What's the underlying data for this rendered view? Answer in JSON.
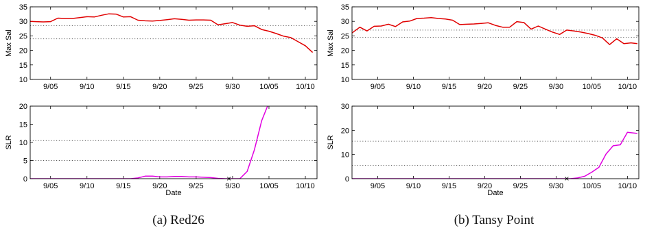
{
  "figure": {
    "captions": [
      "(a) Red26",
      "(b) Tansy Point"
    ]
  },
  "chart_data": [
    {
      "type": "line",
      "panel": "a-top",
      "ylabel": "Max Sal",
      "ylim": [
        10,
        35
      ],
      "yticks": [
        10,
        15,
        20,
        25,
        30,
        35
      ],
      "xlim": [
        2.2,
        41.6
      ],
      "xticks": [
        5,
        10,
        15,
        20,
        25,
        30,
        35,
        40
      ],
      "xticklabels": [
        "9/05",
        "9/10",
        "9/15",
        "9/20",
        "9/25",
        "9/30",
        "10/05",
        "10/10"
      ],
      "grid_y": [
        24,
        28.5
      ],
      "series": [
        {
          "color": "#e00000",
          "x": [
            2.2,
            3,
            4,
            5,
            6,
            7,
            8,
            9,
            10,
            11,
            12,
            13,
            14,
            15,
            16,
            17,
            18,
            19,
            20,
            21,
            22,
            23,
            24,
            25,
            26,
            27,
            28,
            29,
            30,
            31,
            32,
            33,
            34,
            35,
            36,
            37,
            38,
            39,
            40,
            41
          ],
          "y": [
            30.0,
            29.9,
            29.8,
            29.9,
            31.1,
            31.0,
            31.0,
            31.3,
            31.6,
            31.5,
            32.1,
            32.6,
            32.5,
            31.5,
            31.6,
            30.4,
            30.2,
            30.1,
            30.3,
            30.6,
            30.9,
            30.7,
            30.4,
            30.5,
            30.5,
            30.4,
            28.8,
            29.2,
            29.6,
            28.7,
            28.3,
            28.5,
            27.2,
            26.6,
            25.8,
            24.9,
            24.4,
            23.0,
            21.6,
            19.3
          ]
        }
      ]
    },
    {
      "type": "line",
      "panel": "a-bottom",
      "ylabel": "SLR",
      "xlabel": "Date",
      "ylim": [
        0,
        20
      ],
      "yticks": [
        0,
        5,
        10,
        15,
        20
      ],
      "xlim": [
        2.2,
        41.6
      ],
      "xticks": [
        5,
        10,
        15,
        20,
        25,
        30,
        35,
        40
      ],
      "xticklabels": [
        "9/05",
        "9/10",
        "9/15",
        "9/20",
        "9/25",
        "9/30",
        "10/05",
        "10/10"
      ],
      "grid_y": [
        5,
        10.5
      ],
      "marker": {
        "x": 29.5,
        "y": 0,
        "symbol": "×"
      },
      "series": [
        {
          "color": "#e000e0",
          "x": [
            2.2,
            5,
            10,
            15,
            16,
            17,
            18,
            19,
            20,
            21,
            22,
            23,
            24,
            25,
            26,
            27,
            28,
            29,
            30,
            31,
            32,
            33,
            34,
            34.8
          ],
          "y": [
            0,
            0,
            0,
            0,
            0,
            0.2,
            0.7,
            0.7,
            0.5,
            0.5,
            0.6,
            0.6,
            0.5,
            0.5,
            0.4,
            0.3,
            0.1,
            0,
            0,
            0,
            2,
            8,
            16,
            20
          ]
        }
      ]
    },
    {
      "type": "line",
      "panel": "b-top",
      "ylabel": "Max Sal",
      "ylim": [
        10,
        35
      ],
      "yticks": [
        10,
        15,
        20,
        25,
        30,
        35
      ],
      "xlim": [
        1.4,
        41.6
      ],
      "xticks": [
        5,
        10,
        15,
        20,
        25,
        30,
        35,
        40
      ],
      "xticklabels": [
        "9/05",
        "9/10",
        "9/15",
        "9/20",
        "9/25",
        "9/30",
        "10/05",
        "10/10"
      ],
      "grid_y": [
        24.5,
        27
      ],
      "series": [
        {
          "color": "#e00000",
          "x": [
            1.4,
            2.5,
            3.5,
            4.5,
            5.5,
            6.5,
            7.5,
            8.5,
            9.5,
            10.5,
            11.5,
            12.5,
            13.5,
            14.5,
            15.5,
            16.5,
            17.5,
            18.5,
            19.5,
            20.5,
            21.5,
            22.5,
            23.5,
            24.5,
            25.5,
            26.5,
            27.5,
            28.5,
            29.5,
            30.5,
            31.5,
            32.5,
            33.5,
            34.5,
            35.5,
            36.5,
            37.5,
            38.5,
            39.5,
            40.5,
            41.4
          ],
          "y": [
            26.0,
            28.0,
            26.7,
            28.3,
            28.4,
            29.0,
            28.2,
            29.8,
            30.1,
            31.0,
            31.1,
            31.3,
            31.0,
            30.8,
            30.4,
            28.9,
            29.0,
            29.1,
            29.3,
            29.5,
            28.6,
            28.0,
            28.0,
            29.9,
            29.6,
            27.3,
            28.4,
            27.3,
            26.3,
            25.5,
            27.0,
            26.7,
            26.3,
            25.8,
            25.2,
            24.3,
            22.0,
            24.0,
            22.3,
            22.6,
            22.3
          ]
        }
      ]
    },
    {
      "type": "line",
      "panel": "b-bottom",
      "ylabel": "SLR",
      "xlabel": "Date",
      "ylim": [
        0,
        30
      ],
      "yticks": [
        0,
        10,
        20,
        30
      ],
      "xlim": [
        1.4,
        41.6
      ],
      "xticks": [
        5,
        10,
        15,
        20,
        25,
        30,
        35,
        40
      ],
      "xticklabels": [
        "9/05",
        "9/10",
        "9/15",
        "9/20",
        "9/25",
        "9/30",
        "10/05",
        "10/10"
      ],
      "grid_y": [
        5.5,
        15.5
      ],
      "marker": {
        "x": 31.5,
        "y": 0,
        "symbol": "×"
      },
      "series": [
        {
          "color": "#e000e0",
          "x": [
            1.4,
            5,
            10,
            15,
            20,
            25,
            30,
            32,
            33,
            34,
            35,
            36,
            37,
            38,
            39,
            40,
            41.4
          ],
          "y": [
            0,
            0,
            0,
            0,
            0,
            0,
            0,
            0,
            0.3,
            1.0,
            2.7,
            4.7,
            10.2,
            13.6,
            14.0,
            19.2,
            18.7
          ]
        }
      ]
    }
  ]
}
